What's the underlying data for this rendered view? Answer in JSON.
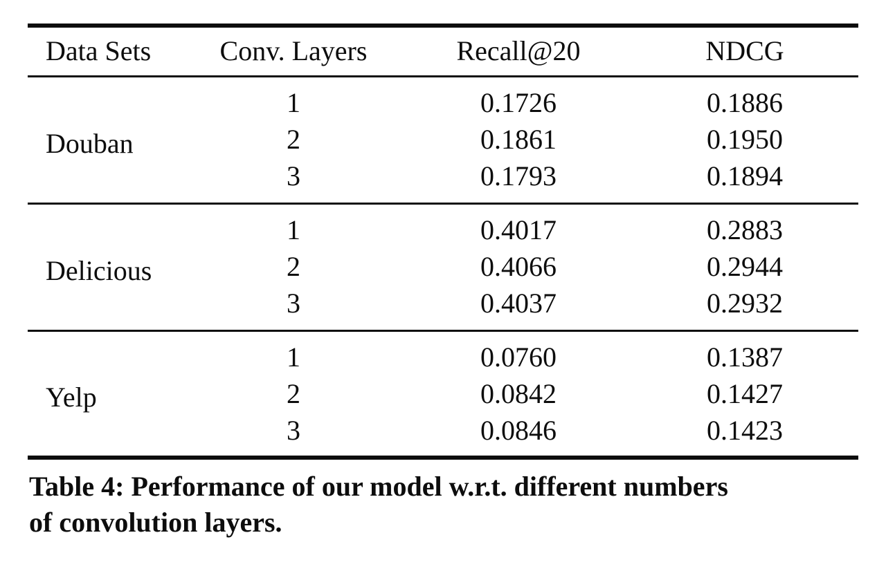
{
  "colors": {
    "ink": "#0d0d0d",
    "background": "#ffffff"
  },
  "table": {
    "columns": {
      "dataset": "Data Sets",
      "layers": "Conv. Layers",
      "recall": "Recall@20",
      "ndcg": "NDCG"
    },
    "groups": [
      {
        "dataset": "Douban",
        "rows": [
          {
            "layers": "1",
            "recall": "0.1726",
            "ndcg": "0.1886"
          },
          {
            "layers": "2",
            "recall": "0.1861",
            "ndcg": "0.1950"
          },
          {
            "layers": "3",
            "recall": "0.1793",
            "ndcg": "0.1894"
          }
        ]
      },
      {
        "dataset": "Delicious",
        "rows": [
          {
            "layers": "1",
            "recall": "0.4017",
            "ndcg": "0.2883"
          },
          {
            "layers": "2",
            "recall": "0.4066",
            "ndcg": "0.2944"
          },
          {
            "layers": "3",
            "recall": "0.4037",
            "ndcg": "0.2932"
          }
        ]
      },
      {
        "dataset": "Yelp",
        "rows": [
          {
            "layers": "1",
            "recall": "0.0760",
            "ndcg": "0.1387"
          },
          {
            "layers": "2",
            "recall": "0.0842",
            "ndcg": "0.1427"
          },
          {
            "layers": "3",
            "recall": "0.0846",
            "ndcg": "0.1423"
          }
        ]
      }
    ],
    "caption_line1": "Table 4: Performance of our model w.r.t. different numbers",
    "caption_line2": "of convolution layers."
  },
  "chart_data": {
    "type": "table",
    "title": "Table 4: Performance of our model w.r.t. different numbers of convolution layers.",
    "columns": [
      "Data Sets",
      "Conv. Layers",
      "Recall@20",
      "NDCG"
    ],
    "rows": [
      [
        "Douban",
        1,
        0.1726,
        0.1886
      ],
      [
        "Douban",
        2,
        0.1861,
        0.195
      ],
      [
        "Douban",
        3,
        0.1793,
        0.1894
      ],
      [
        "Delicious",
        1,
        0.4017,
        0.2883
      ],
      [
        "Delicious",
        2,
        0.4066,
        0.2944
      ],
      [
        "Delicious",
        3,
        0.4037,
        0.2932
      ],
      [
        "Yelp",
        1,
        0.076,
        0.1387
      ],
      [
        "Yelp",
        2,
        0.0842,
        0.1427
      ],
      [
        "Yelp",
        3,
        0.0846,
        0.1423
      ]
    ]
  }
}
